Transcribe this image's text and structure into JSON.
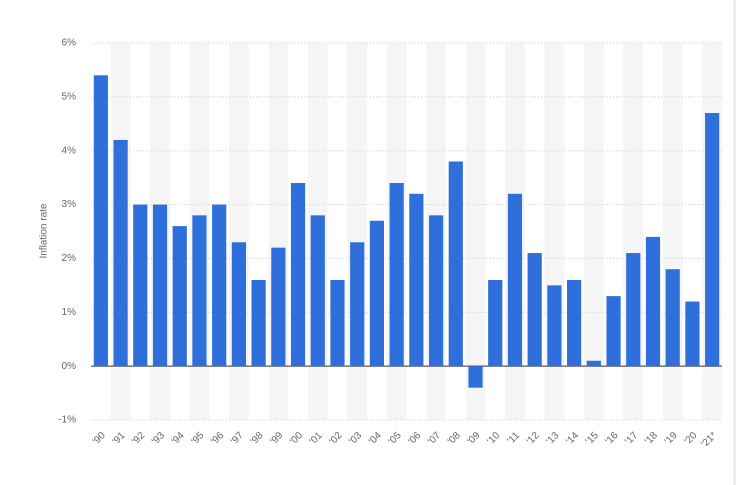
{
  "chart_data": {
    "type": "bar",
    "y_label": "Inflation rate",
    "categories": [
      "'90",
      "'91",
      "'92",
      "'93",
      "'94",
      "'95",
      "'96",
      "'97",
      "'98",
      "'99",
      "'00",
      "'01",
      "'02",
      "'03",
      "'04",
      "'05",
      "'06",
      "'07",
      "'08",
      "'09",
      "'10",
      "'11",
      "'12",
      "'13",
      "'14",
      "'15",
      "'16",
      "'17",
      "'18",
      "'19",
      "'20",
      "'21*"
    ],
    "values": [
      5.4,
      4.2,
      3.0,
      3.0,
      2.6,
      2.8,
      3.0,
      2.3,
      1.6,
      2.2,
      3.4,
      2.8,
      1.6,
      2.3,
      2.7,
      3.4,
      3.2,
      2.8,
      3.8,
      -0.4,
      1.6,
      3.2,
      2.1,
      1.5,
      1.6,
      0.1,
      1.3,
      2.1,
      2.4,
      1.8,
      1.2,
      4.7
    ],
    "color": "#2f6fdc",
    "ylim": [
      -1,
      6
    ],
    "yticks": [
      {
        "value": -1,
        "label": "-1%"
      },
      {
        "value": 0,
        "label": "0%"
      },
      {
        "value": 1,
        "label": "1%"
      },
      {
        "value": 2,
        "label": "2%"
      },
      {
        "value": 3,
        "label": "3%"
      },
      {
        "value": 4,
        "label": "4%"
      },
      {
        "value": 5,
        "label": "5%"
      },
      {
        "value": 6,
        "label": "6%"
      }
    ],
    "grid": true
  }
}
